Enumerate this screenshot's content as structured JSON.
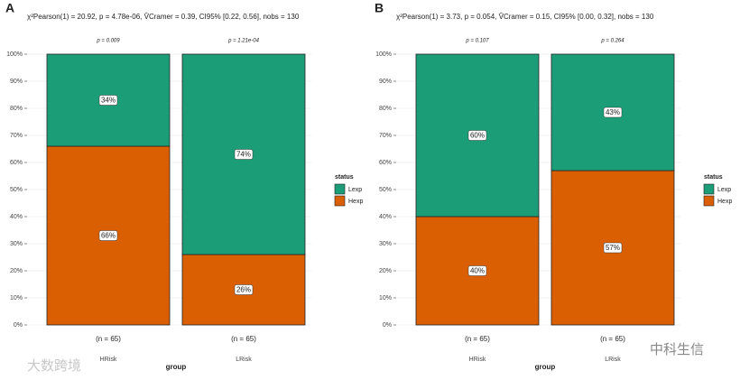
{
  "chart_data": [
    {
      "type": "bar",
      "stacked": true,
      "panel_label": "A",
      "subtitle": "χ²Pearson(1) = 20.92, p = 4.78e-06, V̂Cramer = 0.39, CI95% [0.22, 0.56], nobs = 130",
      "categories": [
        "HRisk",
        "LRisk"
      ],
      "category_counts": [
        "(n = 65)",
        "(n = 65)"
      ],
      "p_labels": [
        "p = 0.009",
        "p = 1.21e-04"
      ],
      "x_label": "group",
      "legend_title": "status",
      "series": [
        {
          "name": "Lexp",
          "color": "#1b9e77",
          "values": [
            34,
            74
          ],
          "value_labels": [
            "34%",
            "74%"
          ]
        },
        {
          "name": "Hexp",
          "color": "#d95f02",
          "values": [
            66,
            26
          ],
          "value_labels": [
            "66%",
            "26%"
          ]
        }
      ],
      "ylim": [
        0,
        100
      ],
      "yticks": [
        {
          "value": 0,
          "label": "0%"
        },
        {
          "value": 10,
          "label": "10%"
        },
        {
          "value": 20,
          "label": "20%"
        },
        {
          "value": 30,
          "label": "30%"
        },
        {
          "value": 40,
          "label": "40%"
        },
        {
          "value": 50,
          "label": "50%"
        },
        {
          "value": 60,
          "label": "60%"
        },
        {
          "value": 70,
          "label": "70%"
        },
        {
          "value": 80,
          "label": "80%"
        },
        {
          "value": 90,
          "label": "90%"
        },
        {
          "value": 100,
          "label": "100%"
        }
      ],
      "grid": true
    },
    {
      "type": "bar",
      "stacked": true,
      "panel_label": "B",
      "subtitle": "χ²Pearson(1) = 3.73, p = 0.054, V̂Cramer = 0.15, CI95% [0.00, 0.32], nobs = 130",
      "categories": [
        "HRisk",
        "LRisk"
      ],
      "category_counts": [
        "(n = 65)",
        "(n = 65)"
      ],
      "p_labels": [
        "p = 0.107",
        "p = 0.264"
      ],
      "x_label": "group",
      "legend_title": "status",
      "series": [
        {
          "name": "Lexp",
          "color": "#1b9e77",
          "values": [
            60,
            43
          ],
          "value_labels": [
            "60%",
            "43%"
          ]
        },
        {
          "name": "Hexp",
          "color": "#d95f02",
          "values": [
            40,
            57
          ],
          "value_labels": [
            "40%",
            "57%"
          ]
        }
      ],
      "ylim": [
        0,
        100
      ],
      "yticks": [
        {
          "value": 0,
          "label": "0%"
        },
        {
          "value": 10,
          "label": "10%"
        },
        {
          "value": 20,
          "label": "20%"
        },
        {
          "value": 30,
          "label": "30%"
        },
        {
          "value": 40,
          "label": "40%"
        },
        {
          "value": 50,
          "label": "50%"
        },
        {
          "value": 60,
          "label": "60%"
        },
        {
          "value": 70,
          "label": "70%"
        },
        {
          "value": 80,
          "label": "80%"
        },
        {
          "value": 90,
          "label": "90%"
        },
        {
          "value": 100,
          "label": "100%"
        }
      ],
      "grid": true
    }
  ],
  "watermarks": [
    "大数跨境",
    "中科生信"
  ]
}
